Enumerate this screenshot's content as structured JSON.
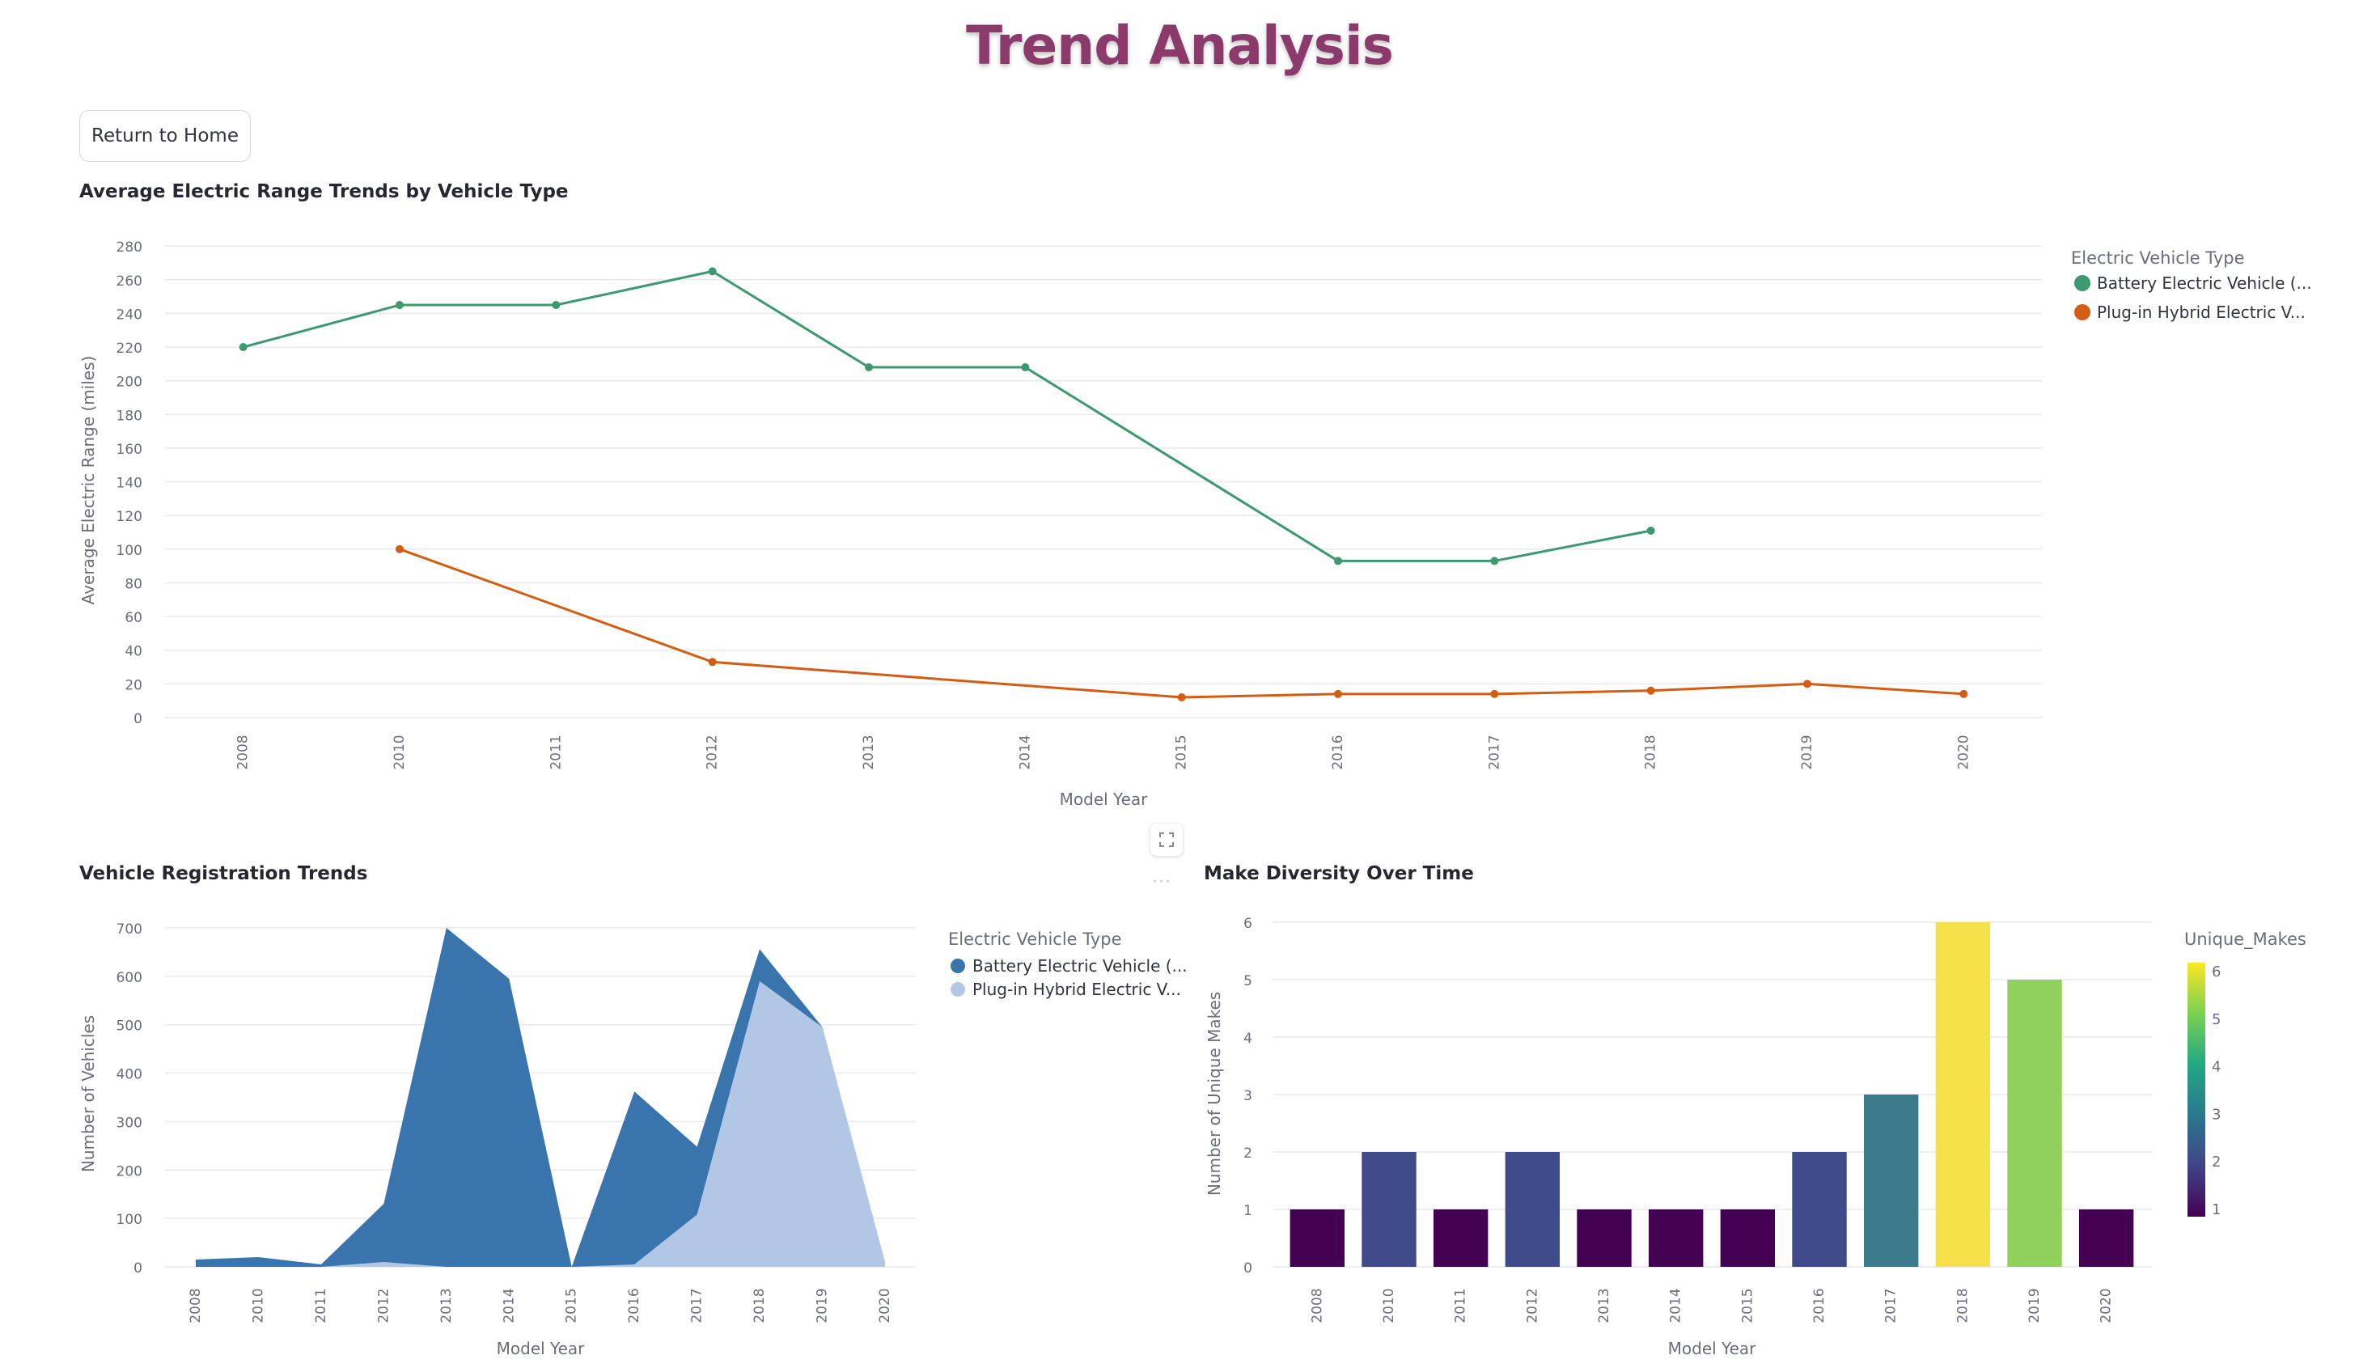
{
  "page": {
    "title": "Trend Analysis",
    "return_button": "Return to Home"
  },
  "icons": {
    "fullscreen": "fullscreen-icon",
    "more": "more-options-icon"
  },
  "chart_data": [
    {
      "id": "range",
      "type": "line",
      "title": "Average Electric Range Trends by Vehicle Type",
      "xlabel": "Model Year",
      "ylabel": "Average Electric Range (miles)",
      "categories": [
        "2008",
        "2010",
        "2011",
        "2012",
        "2013",
        "2014",
        "2015",
        "2016",
        "2017",
        "2018",
        "2019",
        "2020"
      ],
      "yticks": [
        0,
        20,
        40,
        60,
        80,
        100,
        120,
        140,
        160,
        180,
        200,
        220,
        240,
        260,
        280
      ],
      "ylim": [
        0,
        282
      ],
      "grid": true,
      "legend": {
        "title": "Electric Vehicle Type",
        "placement": "right"
      },
      "series": [
        {
          "name": "Battery Electric Vehicle (...",
          "color": "#3d9970",
          "values": [
            220,
            245,
            245,
            265,
            208,
            208,
            null,
            93,
            93,
            111,
            null,
            null
          ]
        },
        {
          "name": "Plug-in Hybrid Electric V...",
          "color": "#d45d14",
          "values": [
            null,
            100,
            null,
            33,
            null,
            null,
            12,
            14,
            14,
            16,
            20,
            14
          ]
        }
      ]
    },
    {
      "id": "registrations",
      "type": "area",
      "title": "Vehicle Registration Trends",
      "xlabel": "Model Year",
      "ylabel": "Number of Vehicles",
      "categories": [
        "2008",
        "2010",
        "2011",
        "2012",
        "2013",
        "2014",
        "2015",
        "2016",
        "2017",
        "2018",
        "2019",
        "2020"
      ],
      "yticks": [
        0,
        100,
        200,
        300,
        400,
        500,
        600,
        700
      ],
      "ylim": [
        0,
        715
      ],
      "grid": true,
      "legend": {
        "title": "Electric Vehicle Type",
        "placement": "right"
      },
      "series": [
        {
          "name": "Battery Electric Vehicle (...",
          "color": "#3a74ad",
          "values": [
            15,
            20,
            5,
            130,
            700,
            595,
            0,
            362,
            248,
            656,
            495,
            0
          ]
        },
        {
          "name": "Plug-in Hybrid Electric V...",
          "color": "#b2c7e6",
          "values": [
            0,
            0,
            0,
            10,
            0,
            0,
            0,
            5,
            108,
            590,
            495,
            10
          ]
        }
      ]
    },
    {
      "id": "makes",
      "type": "bar",
      "title": "Make Diversity Over Time",
      "xlabel": "Model Year",
      "ylabel": "Number of Unique Makes",
      "categories": [
        "2008",
        "2010",
        "2011",
        "2012",
        "2013",
        "2014",
        "2015",
        "2016",
        "2017",
        "2018",
        "2019",
        "2020"
      ],
      "values": [
        1,
        2,
        1,
        2,
        1,
        1,
        1,
        2,
        3,
        6,
        5,
        1
      ],
      "yticks": [
        0,
        1,
        2,
        3,
        4,
        5,
        6
      ],
      "ylim": [
        0,
        6
      ],
      "grid": true,
      "colorscale": {
        "title": "Unique_Makes",
        "min": 1,
        "max": 6,
        "ticks": [
          1,
          2,
          3,
          4,
          5,
          6
        ]
      },
      "bar_colors": [
        "#440154",
        "#3e4a89",
        "#440154",
        "#3e4a89",
        "#440154",
        "#440154",
        "#440154",
        "#3e4a89",
        "#3a7a8b",
        "#f5e24b",
        "#8fd15c",
        "#440154"
      ]
    }
  ]
}
